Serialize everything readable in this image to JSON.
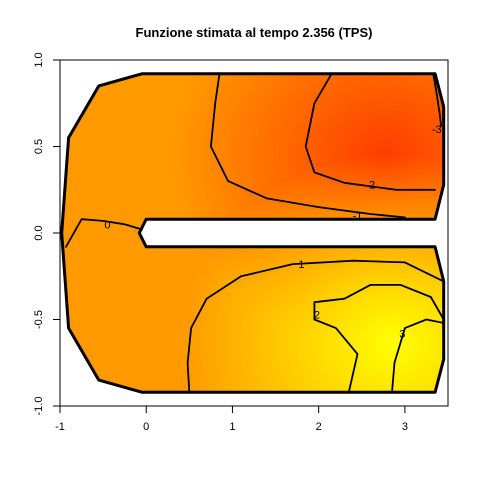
{
  "chart_data": {
    "type": "heatmap",
    "title": "Funzione stimata al tempo 2.356 (TPS)",
    "xlabel": "",
    "ylabel": "",
    "xlim": [
      -1,
      3.5
    ],
    "ylim": [
      -1,
      1
    ],
    "x_ticks": [
      "-1",
      "0",
      "1",
      "2",
      "3"
    ],
    "y_ticks": [
      "-1.0",
      "-0.5",
      "0.0",
      "0.5",
      "1.0"
    ],
    "grid": false,
    "colormap": {
      "low": "#ff3c00",
      "mid": "#ff9900",
      "high": "#ffff00"
    },
    "domain_outline": [
      [
        -0.05,
        0.92
      ],
      [
        3.35,
        0.92
      ],
      [
        3.45,
        0.73
      ],
      [
        3.45,
        0.28
      ],
      [
        3.35,
        0.08
      ],
      [
        0.0,
        0.08
      ],
      [
        -0.08,
        0.0
      ],
      [
        0.0,
        -0.08
      ],
      [
        3.35,
        -0.08
      ],
      [
        3.45,
        -0.28
      ],
      [
        3.45,
        -0.73
      ],
      [
        3.35,
        -0.92
      ],
      [
        -0.05,
        -0.92
      ],
      [
        -0.55,
        -0.85
      ],
      [
        -0.9,
        -0.55
      ],
      [
        -0.98,
        0.0
      ],
      [
        -0.9,
        0.55
      ],
      [
        -0.55,
        0.85
      ],
      [
        -0.05,
        0.92
      ]
    ],
    "contours": [
      {
        "level": "0",
        "points": [
          [
            -0.93,
            -0.08
          ],
          [
            -0.75,
            0.08
          ],
          [
            -0.5,
            0.07
          ],
          [
            -0.25,
            0.05
          ],
          [
            -0.05,
            0.02
          ]
        ]
      },
      {
        "level": "-1",
        "points": [
          [
            0.85,
            0.92
          ],
          [
            0.8,
            0.75
          ],
          [
            0.75,
            0.5
          ],
          [
            0.95,
            0.3
          ],
          [
            1.4,
            0.2
          ],
          [
            2.0,
            0.15
          ],
          [
            2.6,
            0.11
          ],
          [
            3.0,
            0.09
          ]
        ]
      },
      {
        "level": "-2",
        "points": [
          [
            2.15,
            0.92
          ],
          [
            1.95,
            0.75
          ],
          [
            1.85,
            0.5
          ],
          [
            1.95,
            0.35
          ],
          [
            2.3,
            0.29
          ],
          [
            2.9,
            0.25
          ],
          [
            3.35,
            0.25
          ]
        ]
      },
      {
        "level": "-3",
        "points": [
          [
            3.33,
            0.92
          ],
          [
            3.37,
            0.8
          ],
          [
            3.4,
            0.7
          ],
          [
            3.42,
            0.62
          ]
        ]
      },
      {
        "level": "1",
        "points": [
          [
            0.5,
            -0.92
          ],
          [
            0.48,
            -0.75
          ],
          [
            0.52,
            -0.55
          ],
          [
            0.7,
            -0.38
          ],
          [
            1.1,
            -0.25
          ],
          [
            1.7,
            -0.18
          ],
          [
            2.4,
            -0.16
          ],
          [
            3.0,
            -0.17
          ],
          [
            3.45,
            -0.28
          ]
        ]
      },
      {
        "level": "2",
        "points": [
          [
            2.35,
            -0.92
          ],
          [
            2.45,
            -0.7
          ],
          [
            2.2,
            -0.55
          ],
          [
            1.95,
            -0.5
          ],
          [
            1.95,
            -0.4
          ],
          [
            2.3,
            -0.38
          ],
          [
            2.6,
            -0.3
          ],
          [
            2.95,
            -0.3
          ],
          [
            3.3,
            -0.37
          ],
          [
            3.45,
            -0.5
          ]
        ]
      },
      {
        "level": "3",
        "points": [
          [
            2.85,
            -0.92
          ],
          [
            2.88,
            -0.75
          ],
          [
            3.0,
            -0.55
          ],
          [
            3.25,
            -0.5
          ],
          [
            3.45,
            -0.52
          ]
        ]
      }
    ],
    "contour_labels": [
      {
        "text": "0",
        "x": -0.45,
        "y": 0.05
      },
      {
        "text": "-1",
        "x": 2.45,
        "y": 0.1
      },
      {
        "text": "-2",
        "x": 2.6,
        "y": 0.28
      },
      {
        "text": "-3",
        "x": 3.37,
        "y": 0.6
      },
      {
        "text": "1",
        "x": 1.8,
        "y": -0.18
      },
      {
        "text": "2",
        "x": 1.98,
        "y": -0.47
      },
      {
        "text": "3",
        "x": 2.97,
        "y": -0.58
      }
    ]
  }
}
